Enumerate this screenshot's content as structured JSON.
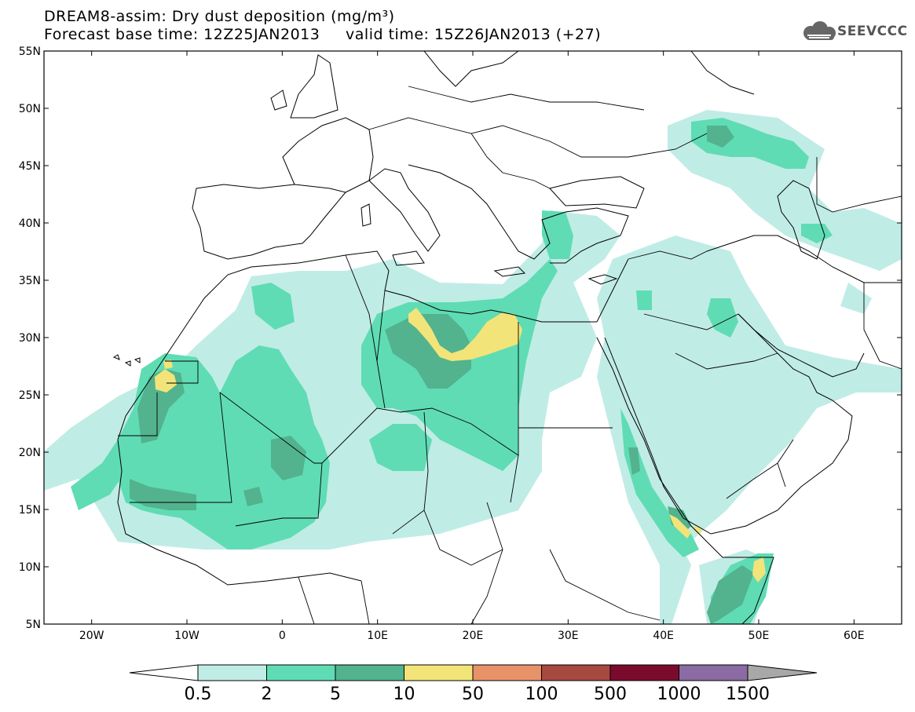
{
  "title": {
    "line1": "DREAM8-assim: Dry dust deposition (mg/m³)",
    "line2_left": "Forecast base time: 12Z25JAN2013",
    "line2_right": "valid time: 15Z26JAN2013 (+27)"
  },
  "logo": {
    "text": "SEEVCCC",
    "icon": "cloud-icon"
  },
  "axes": {
    "lat_labels": [
      "55N",
      "50N",
      "45N",
      "40N",
      "35N",
      "30N",
      "25N",
      "20N",
      "15N",
      "10N",
      "5N"
    ],
    "lon_labels": [
      "20W",
      "10W",
      "0",
      "10E",
      "20E",
      "30E",
      "40E",
      "50E",
      "60E"
    ],
    "lon_range": [
      -25,
      65
    ],
    "lat_range": [
      5,
      55
    ]
  },
  "legend": {
    "labels": [
      "0.5",
      "2",
      "5",
      "10",
      "50",
      "100",
      "500",
      "1000",
      "1500"
    ],
    "colors": [
      "#ffffff",
      "#c0ece6",
      "#5fdcb4",
      "#52b38e",
      "#f2e479",
      "#e8926a",
      "#a6493e",
      "#7b0b2c",
      "#8b6ba3",
      "#a8a8a8"
    ]
  },
  "colors": {
    "level_0_5": "#c0ece6",
    "level_2": "#5fdcb4",
    "level_5": "#52b38e",
    "level_10": "#f2e479",
    "coast": "#000000"
  }
}
